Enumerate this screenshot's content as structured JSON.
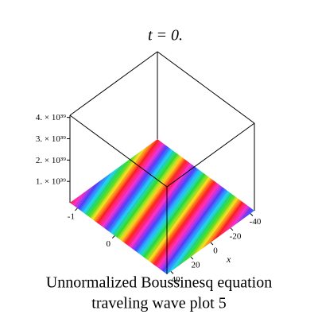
{
  "chart_data": {
    "type": "surface",
    "title": "t = 0.",
    "caption": [
      "Unnormalized Boussinesq equation",
      "traveling wave plot 5"
    ],
    "xlabel": "x",
    "xlim": [
      -44,
      44
    ],
    "xticks": [
      -40,
      -20,
      0,
      20,
      40
    ],
    "ylim": [
      -1.2,
      1.4
    ],
    "yticks": [
      -1,
      0
    ],
    "zlim": [
      0,
      4.1e+39
    ],
    "zticks": [
      {
        "value": 1e+39,
        "label": "1. × 10³⁹"
      },
      {
        "value": 2e+39,
        "label": "2. × 10³⁹"
      },
      {
        "value": 3e+39,
        "label": "3. × 10³⁹"
      },
      {
        "value": 4e+39,
        "label": "4. × 10³⁹"
      }
    ]
  }
}
